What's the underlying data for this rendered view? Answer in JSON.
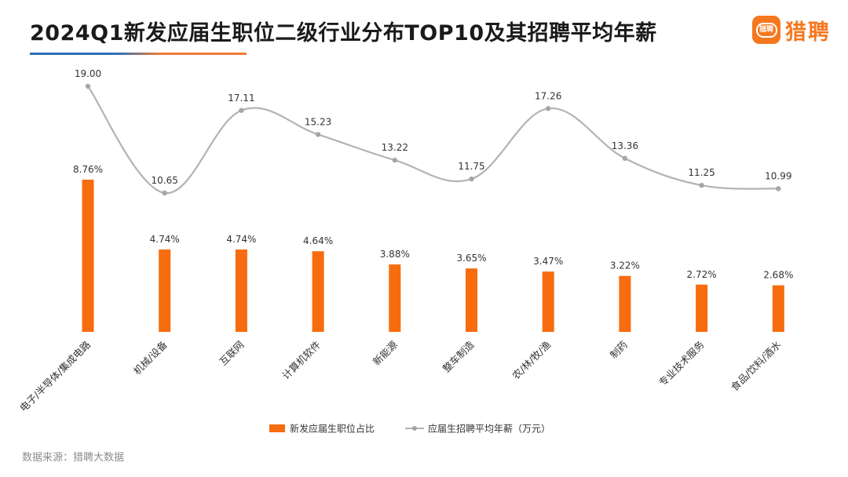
{
  "title": "2024Q1新发应届生职位二级行业分布TOP10及其招聘平均年薪",
  "logo": {
    "icon": "liepin-logo-icon",
    "badge_text": "猎聘",
    "text": "猎聘"
  },
  "source": "数据来源：猎聘大数据",
  "colors": {
    "bar": "#f66c0e",
    "line": "#b3b3b3",
    "marker": "#a6a6a6",
    "label": "#333333"
  },
  "chart_data": {
    "type": "bar",
    "title": "2024Q1新发应届生职位二级行业分布TOP10及其招聘平均年薪",
    "categories": [
      "电子/半导体/集成电路",
      "机械/设备",
      "互联网",
      "计算机软件",
      "新能源",
      "整车制造",
      "农/林/牧/渔",
      "制药",
      "专业技术服务",
      "食品/饮料/酒水"
    ],
    "series": [
      {
        "name": "新发应届生职位占比",
        "type": "bar",
        "values": [
          8.76,
          4.74,
          4.74,
          4.64,
          3.88,
          3.65,
          3.47,
          3.22,
          2.72,
          2.68
        ],
        "labels": [
          "8.76%",
          "4.74%",
          "4.74%",
          "4.64%",
          "3.88%",
          "3.65%",
          "3.47%",
          "3.22%",
          "2.72%",
          "2.68%"
        ]
      },
      {
        "name": "应届生招聘平均年薪（万元）",
        "type": "line",
        "values": [
          19.0,
          10.65,
          17.11,
          15.23,
          13.22,
          11.75,
          17.26,
          13.36,
          11.25,
          10.99
        ],
        "labels": [
          "19.00",
          "10.65",
          "17.11",
          "15.23",
          "13.22",
          "11.75",
          "17.26",
          "13.36",
          "11.25",
          "10.99"
        ]
      }
    ],
    "legend_position": "bottom-center",
    "grid": false
  }
}
